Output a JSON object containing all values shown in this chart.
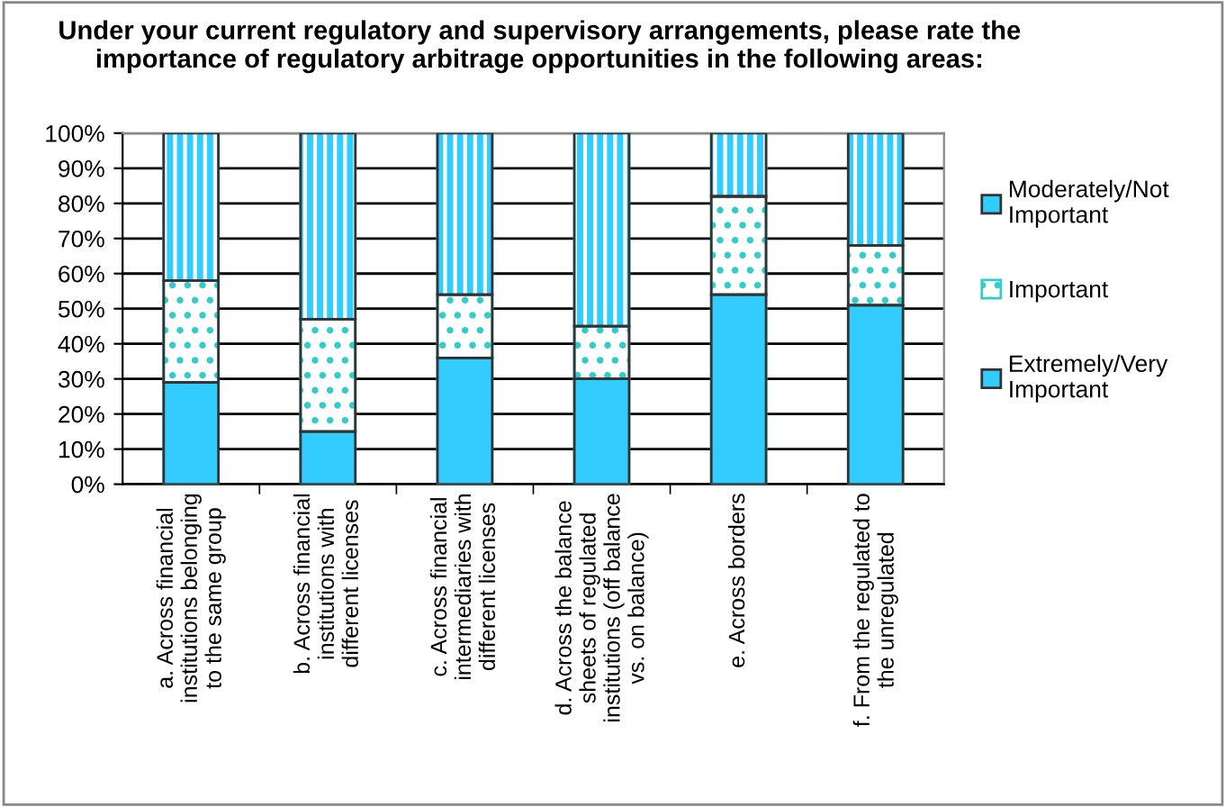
{
  "chart_data": {
    "type": "bar",
    "stacked": true,
    "title": "Under your current regulatory and supervisory arrangements, please rate the importance of regulatory arbitrage opportunities in the following areas:",
    "categories": [
      "a. Across financial\ninstitutions belonging\nto the same group",
      "b. Across financial\ninstitutions with\ndifferent licenses",
      "c. Across financial\nintermediaries with\ndifferent licenses",
      "d. Across the balance\nsheets of regulated\ninstitutions (off balance\nvs. on balance)",
      "e. Across borders",
      "f. From the regulated to\nthe unregulated"
    ],
    "series": [
      {
        "name": "Extremely/Very Important",
        "color": "#33ccff",
        "values": [
          29,
          15,
          36,
          30,
          54,
          51
        ]
      },
      {
        "name": "Important",
        "color": "#33cccc",
        "values": [
          29,
          32,
          18,
          15,
          28,
          17
        ]
      },
      {
        "name": "Moderately/Not Important",
        "color": "#33ccff",
        "values": [
          42,
          53,
          46,
          55,
          18,
          32
        ]
      }
    ],
    "ylim": [
      0,
      100
    ],
    "yticks": [
      {
        "value": 0,
        "label": "0%"
      },
      {
        "value": 10,
        "label": "10%"
      },
      {
        "value": 20,
        "label": "20%"
      },
      {
        "value": 30,
        "label": "30%"
      },
      {
        "value": 40,
        "label": "40%"
      },
      {
        "value": 50,
        "label": "50%"
      },
      {
        "value": 60,
        "label": "60%"
      },
      {
        "value": 70,
        "label": "70%"
      },
      {
        "value": 80,
        "label": "80%"
      },
      {
        "value": 90,
        "label": "90%"
      },
      {
        "value": 100,
        "label": "100%"
      }
    ],
    "grid": "y",
    "legend": "right"
  }
}
